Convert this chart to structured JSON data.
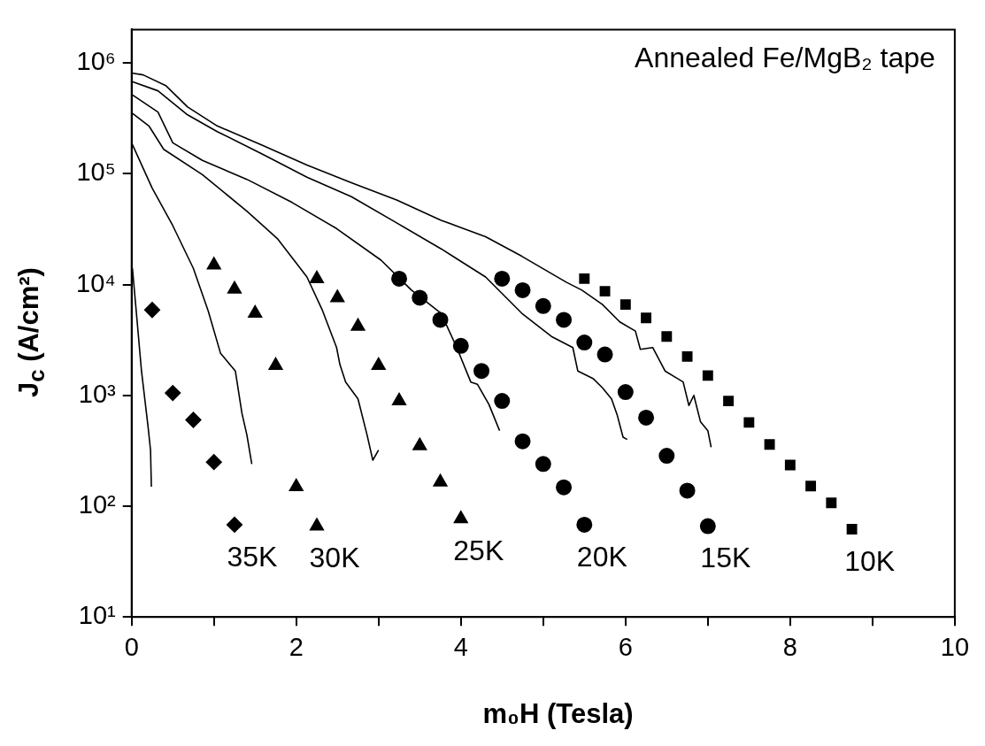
{
  "chart_data": {
    "type": "line",
    "xlabel": "m₀H (Tesla)",
    "ylabel": "J$_{c}$ (A/cm²)",
    "xlim": [
      0,
      10
    ],
    "xticks": [
      0,
      {
        "value": 1,
        "label": null
      },
      2,
      {
        "value": 3,
        "label": null
      },
      4,
      {
        "value": 5,
        "label": null
      },
      6,
      {
        "value": 7,
        "label": null
      },
      8,
      {
        "value": 9,
        "label": null
      },
      10
    ],
    "ylim": [
      10,
      2000000
    ],
    "log": "y",
    "yticks": [
      {
        "value": 10,
        "label": "10¹"
      },
      {
        "value": 100,
        "label": "10²"
      },
      {
        "value": 1000,
        "label": "10³"
      },
      {
        "value": 10000,
        "label": "10⁴"
      },
      {
        "value": 100000,
        "label": "10⁵"
      },
      {
        "value": 1000000,
        "label": "10⁶"
      }
    ],
    "grid": false,
    "legend": false,
    "series": [
      {
        "color": "#000000",
        "marker": "none",
        "x": [
          0,
          0.14,
          0.42,
          0.68,
          1.04,
          1.59,
          2.13,
          2.67,
          3.22,
          3.76,
          4.3,
          4.74,
          5.28,
          5.47,
          5.72,
          5.93,
          6.12,
          6.18,
          6.33,
          6.48,
          6.7,
          6.77,
          6.83,
          6.91,
          7.0,
          7.04
        ],
        "values": [
          810000,
          780000,
          620000,
          400000,
          270000,
          180000,
          120000,
          83000,
          58000,
          38000,
          27000,
          18000,
          10500,
          8900,
          6600,
          4600,
          3800,
          2600,
          2700,
          1660,
          1320,
          810,
          1000,
          580,
          480,
          340
        ]
      },
      {
        "color": "#000000",
        "marker": "none",
        "x": [
          0,
          0.32,
          0.68,
          1.04,
          1.59,
          2.13,
          2.67,
          3.22,
          3.76,
          4.3,
          4.74,
          5.1,
          5.36,
          5.42,
          5.61,
          5.72,
          5.83,
          5.9,
          5.97,
          6.02
        ],
        "values": [
          680000,
          560000,
          340000,
          240000,
          150000,
          93000,
          62000,
          36000,
          21000,
          11700,
          5500,
          3400,
          2700,
          1660,
          1410,
          1170,
          930,
          660,
          420,
          400
        ]
      },
      {
        "color": "#000000",
        "marker": "none",
        "x": [
          0,
          0.32,
          0.5,
          0.86,
          1.4,
          1.95,
          2.49,
          3.03,
          3.4,
          3.76,
          3.95,
          4.12,
          4.2,
          4.34,
          4.47
        ],
        "values": [
          520000,
          360000,
          190000,
          132000,
          89000,
          55000,
          32000,
          16600,
          8900,
          5500,
          2700,
          1320,
          1260,
          830,
          480
        ]
      },
      {
        "color": "#000000",
        "marker": "none",
        "x": [
          0,
          0.21,
          0.39,
          0.86,
          1.4,
          1.77,
          2.13,
          2.32,
          2.49,
          2.53,
          2.6,
          2.75,
          2.86,
          2.93,
          3.0
        ],
        "values": [
          355000,
          270000,
          166000,
          98000,
          46000,
          26000,
          11700,
          5800,
          2700,
          1900,
          1320,
          930,
          440,
          260,
          320
        ]
      },
      {
        "color": "#000000",
        "marker": "none",
        "x": [
          0,
          0.25,
          0.5,
          0.75,
          0.93,
          1.08,
          1.26,
          1.34,
          1.4,
          1.46
        ],
        "values": [
          190000,
          74000,
          34000,
          14000,
          5800,
          2400,
          1660,
          690,
          440,
          240
        ]
      },
      {
        "color": "#000000",
        "marker": "none",
        "x": [
          0.01,
          0.07,
          0.12,
          0.2,
          0.23,
          0.24
        ],
        "values": [
          14000,
          4400,
          1660,
          520,
          320,
          150
        ]
      },
      {
        "type": "scatter",
        "name": "35K",
        "color": "#000000",
        "marker": "diamond",
        "x": [
          0.25,
          0.5,
          0.75,
          1.0,
          1.25
        ],
        "values": [
          5900,
          1050,
          600,
          250,
          68
        ]
      },
      {
        "type": "scatter",
        "name": "30K",
        "color": "#000000",
        "marker": "triangle",
        "x": [
          1.0,
          1.25,
          1.5,
          1.75,
          2.0,
          2.25
        ],
        "values": [
          15000,
          9100,
          5500,
          1860,
          150,
          66
        ]
      },
      {
        "type": "scatter",
        "name": "25K",
        "color": "#000000",
        "marker": "triangle",
        "x": [
          2.25,
          2.5,
          2.75,
          3.0,
          3.25,
          3.5,
          3.75,
          4.0
        ],
        "values": [
          11300,
          7600,
          4200,
          1860,
          890,
          350,
          165,
          77
        ]
      },
      {
        "type": "scatter",
        "name": "20K",
        "color": "#000000",
        "marker": "circle",
        "x": [
          3.25,
          3.5,
          3.75,
          4.0,
          4.25,
          4.5,
          4.75,
          5.0,
          5.25,
          5.5
        ],
        "values": [
          11300,
          7600,
          4800,
          2800,
          1660,
          890,
          385,
          240,
          148,
          68
        ]
      },
      {
        "type": "scatter",
        "name": "15K",
        "color": "#000000",
        "marker": "circle",
        "x": [
          4.5,
          4.75,
          5.0,
          5.25,
          5.5,
          5.75,
          6.0,
          6.25,
          6.5,
          6.75,
          7.0
        ],
        "values": [
          11300,
          8900,
          6400,
          4800,
          3000,
          2340,
          1070,
          630,
          285,
          138,
          66
        ]
      },
      {
        "type": "scatter",
        "name": "10K",
        "color": "#000000",
        "marker": "square",
        "x": [
          5.5,
          5.75,
          6.0,
          6.25,
          6.5,
          6.75,
          7.0,
          7.25,
          7.5,
          7.75,
          8.0,
          8.25,
          8.5,
          8.75
        ],
        "values": [
          11300,
          8700,
          6600,
          5000,
          3400,
          2240,
          1510,
          890,
          570,
          360,
          235,
          152,
          107,
          62
        ]
      }
    ],
    "annotations": [
      "Annealed Fe/MgB₂ tape"
    ]
  }
}
